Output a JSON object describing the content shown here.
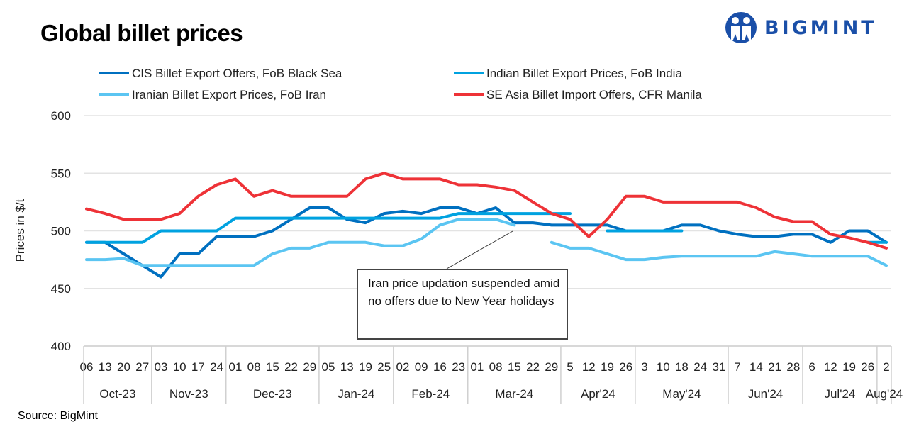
{
  "title": "Global billet prices",
  "logo_text": "BIGMINT",
  "source": "Source: BigMint",
  "annotation": "Iran price updation suspended amid no offers due to New Year holidays",
  "chart_data": {
    "type": "line",
    "title": "Global billet prices",
    "ylabel": "Prices in $/t",
    "xlabel": "",
    "ylim": [
      400,
      600
    ],
    "yticks": [
      400,
      450,
      500,
      550,
      600
    ],
    "grid": true,
    "legend_position": "top",
    "x": [
      "06",
      "13",
      "20",
      "27",
      "03",
      "10",
      "17",
      "24",
      "01",
      "08",
      "15",
      "22",
      "29",
      "05",
      "13",
      "19",
      "25",
      "02",
      "09",
      "16",
      "23",
      "01",
      "08",
      "15",
      "22",
      "29",
      "5",
      "12",
      "19",
      "26",
      "3",
      "10",
      "18",
      "24",
      "31",
      "7",
      "14",
      "21",
      "28",
      "6",
      "12",
      "19",
      "26",
      "2"
    ],
    "month_groups": [
      {
        "label": "Oct-23",
        "count": 4
      },
      {
        "label": "Nov-23",
        "count": 4
      },
      {
        "label": "Dec-23",
        "count": 5
      },
      {
        "label": "Jan-24",
        "count": 4
      },
      {
        "label": "Feb-24",
        "count": 4
      },
      {
        "label": "Mar-24",
        "count": 5
      },
      {
        "label": "Apr'24",
        "count": 4
      },
      {
        "label": "May'24",
        "count": 5
      },
      {
        "label": "Jun'24",
        "count": 4
      },
      {
        "label": "Jul'24",
        "count": 4
      },
      {
        "label": "Aug'24",
        "count": 1
      }
    ],
    "series": [
      {
        "name": "CIS Billet Export Offers, FoB Black Sea",
        "color": "#0070c0",
        "values": [
          490,
          490,
          480,
          470,
          460,
          480,
          480,
          495,
          495,
          495,
          500,
          510,
          520,
          520,
          510,
          507,
          515,
          517,
          515,
          520,
          520,
          515,
          520,
          507,
          507,
          505,
          505,
          505,
          505,
          500,
          500,
          500,
          505,
          505,
          500,
          497,
          495,
          495,
          497,
          497,
          490,
          500,
          500,
          490
        ]
      },
      {
        "name": "Indian Billet Export Prices, FoB India",
        "color": "#00a2e0",
        "values": [
          490,
          490,
          490,
          490,
          500,
          500,
          500,
          500,
          511,
          511,
          511,
          511,
          511,
          511,
          511,
          511,
          511,
          511,
          511,
          511,
          515,
          515,
          515,
          515,
          515,
          515,
          515,
          null,
          500,
          500,
          500,
          500,
          500,
          null,
          null,
          null,
          null,
          null,
          null,
          null,
          null,
          null,
          490,
          490
        ]
      },
      {
        "name": "Iranian Billet Export Prices, FoB Iran",
        "color": "#5bc5f2",
        "values": [
          475,
          475,
          476,
          470,
          470,
          470,
          470,
          470,
          470,
          470,
          480,
          485,
          485,
          490,
          490,
          490,
          487,
          487,
          493,
          505,
          510,
          510,
          510,
          505,
          null,
          490,
          485,
          485,
          480,
          475,
          475,
          477,
          478,
          478,
          478,
          478,
          478,
          482,
          480,
          478,
          478,
          478,
          478,
          470
        ]
      },
      {
        "name": "SE Asia Billet Import Offers, CFR Manila",
        "color": "#ee3237",
        "values": [
          519,
          515,
          510,
          510,
          510,
          515,
          530,
          540,
          545,
          530,
          535,
          530,
          530,
          530,
          530,
          545,
          550,
          545,
          545,
          545,
          540,
          540,
          538,
          535,
          525,
          515,
          510,
          495,
          510,
          530,
          530,
          525,
          525,
          525,
          525,
          525,
          520,
          512,
          508,
          508,
          497,
          494,
          490,
          485
        ]
      }
    ]
  }
}
